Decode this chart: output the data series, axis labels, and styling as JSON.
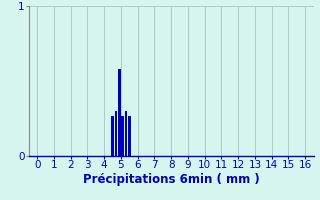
{
  "title": "",
  "xlabel": "Précipitations 6min ( mm )",
  "ylabel": "",
  "xlim": [
    -0.5,
    16.5
  ],
  "ylim": [
    0,
    1.0
  ],
  "yticks": [
    0,
    1
  ],
  "xticks": [
    0,
    1,
    2,
    3,
    4,
    5,
    6,
    7,
    8,
    9,
    10,
    11,
    12,
    13,
    14,
    15,
    16
  ],
  "bar_positions": [
    4.5,
    4.7,
    4.9,
    5.1,
    5.3,
    5.5
  ],
  "bar_heights": [
    0.27,
    0.3,
    0.58,
    0.27,
    0.3,
    0.27
  ],
  "bar_width": 0.15,
  "bar_color": "#0000bb",
  "bg_color": "#d6f5ef",
  "grid_color": "#aec8c4",
  "axis_color": "#888888",
  "tick_color": "#0000bb",
  "label_color": "#0000bb",
  "font_size": 7.5,
  "xlabel_fontsize": 8.5
}
